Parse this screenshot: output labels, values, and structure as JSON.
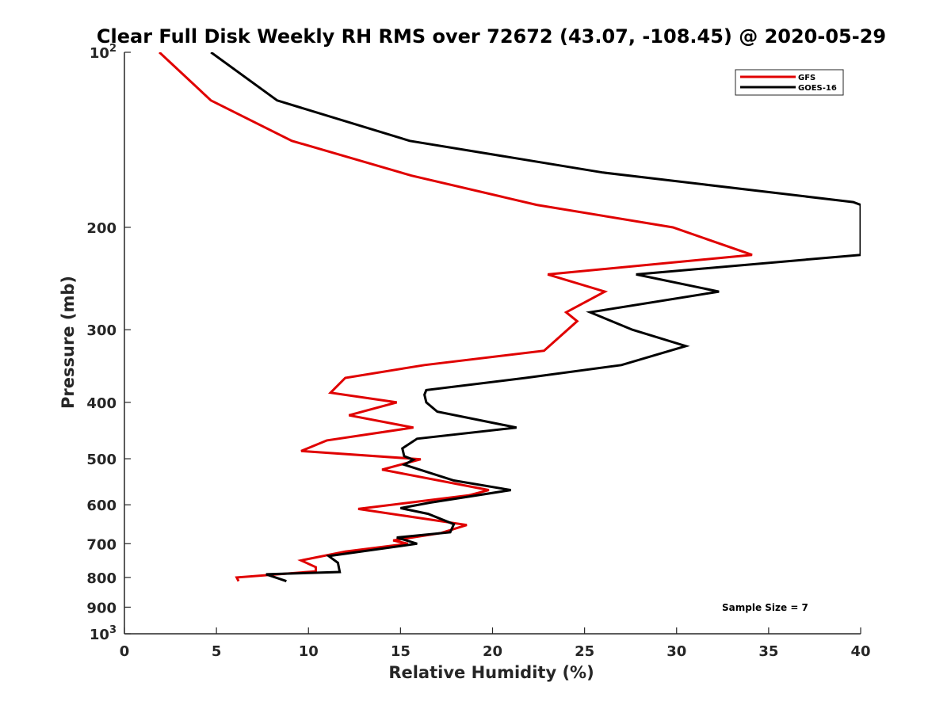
{
  "chart_data": {
    "type": "line",
    "title": "Clear Full Disk Weekly RH RMS over 72672 (43.07, -108.45) @ 2020-05-29",
    "xlabel": "Relative Humidity (%)",
    "ylabel": "Pressure (mb)",
    "xlim": [
      0,
      40
    ],
    "ylim": [
      100,
      1000
    ],
    "yscale": "log",
    "yreversed": true,
    "xticks": [
      {
        "value": 0,
        "label": "0"
      },
      {
        "value": 5,
        "label": "5"
      },
      {
        "value": 10,
        "label": "10"
      },
      {
        "value": 15,
        "label": "15"
      },
      {
        "value": 20,
        "label": "20"
      },
      {
        "value": 25,
        "label": "25"
      },
      {
        "value": 30,
        "label": "30"
      },
      {
        "value": 35,
        "label": "35"
      },
      {
        "value": 40,
        "label": "40"
      }
    ],
    "yticks": [
      {
        "value": 100,
        "base": "10",
        "exp": "2"
      },
      {
        "value": 200,
        "label": "200"
      },
      {
        "value": 300,
        "label": "300"
      },
      {
        "value": 400,
        "label": "400"
      },
      {
        "value": 500,
        "label": "500"
      },
      {
        "value": 600,
        "label": "600"
      },
      {
        "value": 700,
        "label": "700"
      },
      {
        "value": 800,
        "label": "800"
      },
      {
        "value": 900,
        "label": "900"
      },
      {
        "value": 1000,
        "base": "10",
        "exp": "3"
      }
    ],
    "legend_position": "top-right",
    "annotation": "Sample Size = 7",
    "series": [
      {
        "name": "GFS",
        "color": "#e00000",
        "points": [
          [
            1.9,
            100
          ],
          [
            4.7,
            121
          ],
          [
            9.1,
            142
          ],
          [
            15.6,
            163
          ],
          [
            22.4,
            183
          ],
          [
            29.8,
            200
          ],
          [
            34.1,
            223
          ],
          [
            23.0,
            241
          ],
          [
            26.1,
            258
          ],
          [
            24.0,
            280
          ],
          [
            24.6,
            290
          ],
          [
            22.8,
            326
          ],
          [
            16.3,
            345
          ],
          [
            12.0,
            363
          ],
          [
            11.2,
            385
          ],
          [
            14.8,
            400
          ],
          [
            12.2,
            421
          ],
          [
            15.7,
            442
          ],
          [
            11.0,
            465
          ],
          [
            9.6,
            485
          ],
          [
            16.1,
            501
          ],
          [
            14.0,
            522
          ],
          [
            19.8,
            566
          ],
          [
            18.7,
            578
          ],
          [
            12.7,
            610
          ],
          [
            18.6,
            650
          ],
          [
            17.2,
            671
          ],
          [
            14.6,
            691
          ],
          [
            15.4,
            700
          ],
          [
            12.0,
            722
          ],
          [
            9.6,
            748
          ],
          [
            10.4,
            768
          ],
          [
            10.4,
            781
          ],
          [
            6.1,
            800
          ],
          [
            6.2,
            812
          ]
        ]
      },
      {
        "name": "GOES-16",
        "color": "#000000",
        "points": [
          [
            4.7,
            100
          ],
          [
            8.3,
            121
          ],
          [
            15.5,
            142
          ],
          [
            26.0,
            161
          ],
          [
            39.6,
            181
          ],
          [
            40.0,
            183
          ],
          [
            40.0,
            223
          ],
          [
            27.8,
            241
          ],
          [
            32.3,
            258
          ],
          [
            25.3,
            280
          ],
          [
            27.6,
            300
          ],
          [
            30.5,
            320
          ],
          [
            27.0,
            345
          ],
          [
            21.8,
            363
          ],
          [
            16.4,
            381
          ],
          [
            16.3,
            388
          ],
          [
            16.4,
            400
          ],
          [
            17.0,
            415
          ],
          [
            21.3,
            442
          ],
          [
            15.9,
            462
          ],
          [
            15.1,
            480
          ],
          [
            15.2,
            495
          ],
          [
            15.7,
            502
          ],
          [
            15.2,
            512
          ],
          [
            17.9,
            545
          ],
          [
            21.0,
            566
          ],
          [
            16.6,
            595
          ],
          [
            15.0,
            608
          ],
          [
            16.5,
            622
          ],
          [
            17.9,
            648
          ],
          [
            17.7,
            669
          ],
          [
            14.8,
            683
          ],
          [
            15.9,
            700
          ],
          [
            11.1,
            735
          ],
          [
            11.6,
            755
          ],
          [
            11.7,
            783
          ],
          [
            7.7,
            790
          ],
          [
            8.8,
            812
          ]
        ]
      }
    ]
  }
}
